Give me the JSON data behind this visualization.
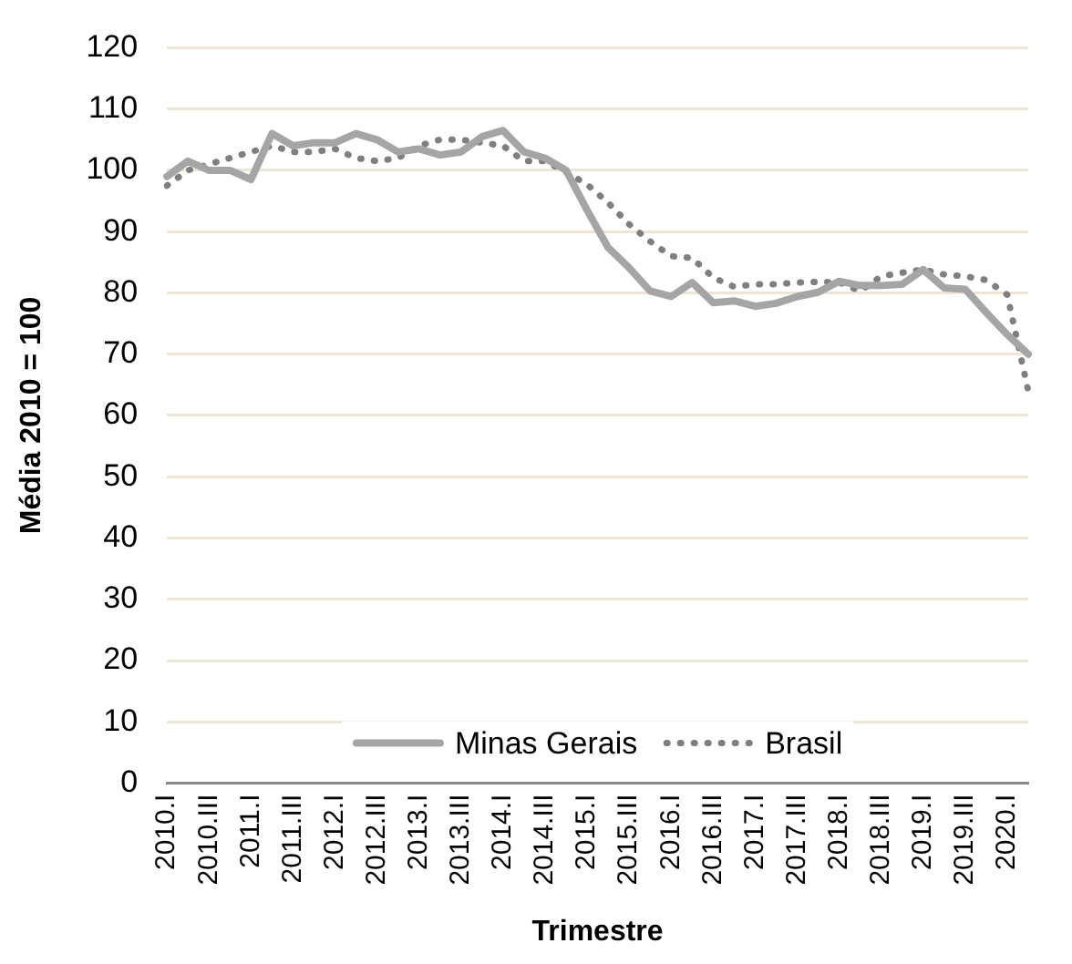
{
  "chart_data": {
    "type": "line",
    "xlabel": "Trimestre",
    "ylabel": "Média 2010 = 100",
    "categories": [
      "2010.I",
      null,
      "2010.III",
      null,
      "2011.I",
      null,
      "2011.III",
      null,
      "2012.I",
      null,
      "2012.III",
      null,
      "2013.I",
      null,
      "2013.III",
      null,
      "2014.I",
      null,
      "2014.III",
      null,
      "2015.I",
      null,
      "2015.III",
      null,
      "2016.I",
      null,
      "2016.III",
      null,
      "2017.I",
      null,
      "2017.III",
      null,
      "2018.I",
      null,
      "2018.III",
      null,
      "2019.I",
      null,
      "2019.III",
      null,
      "2020.I",
      null
    ],
    "series": [
      {
        "name": "Minas Gerais",
        "color": "#a5a5a5",
        "line_style": "solid",
        "values": [
          99,
          101.5,
          100,
          100,
          98.5,
          106,
          104,
          104.5,
          104.5,
          106,
          105,
          103,
          103.5,
          102.5,
          103,
          105.5,
          106.5,
          103,
          102,
          100,
          93.5,
          87.4,
          84.1,
          80.3,
          79.4,
          81.7,
          78.4,
          78.7,
          77.8,
          78.3,
          79.4,
          80.1,
          81.9,
          81.2,
          81.2,
          81.4,
          83.8,
          80.8,
          80.6,
          76.8,
          73.2,
          70
        ]
      },
      {
        "name": "Brasil",
        "color": "#7f7f7f",
        "line_style": "dotted",
        "values": [
          97.5,
          100,
          101,
          102,
          103,
          104,
          103,
          103,
          103.5,
          102,
          101.5,
          102,
          104,
          105,
          105,
          104.5,
          104,
          101.5,
          101.5,
          99.7,
          97.7,
          94.7,
          91.2,
          88.4,
          86,
          85.7,
          82.5,
          81,
          81.4,
          81.4,
          81.7,
          81.8,
          81.7,
          80.3,
          82.7,
          83.3,
          83.8,
          83,
          82.7,
          82.1,
          79.7,
          64
        ]
      }
    ],
    "ylim": [
      0,
      120
    ],
    "yticks": [
      0,
      10,
      20,
      30,
      40,
      50,
      60,
      70,
      80,
      90,
      100,
      110,
      120
    ],
    "grid": "y",
    "legend": "bottom",
    "marker": "none"
  }
}
